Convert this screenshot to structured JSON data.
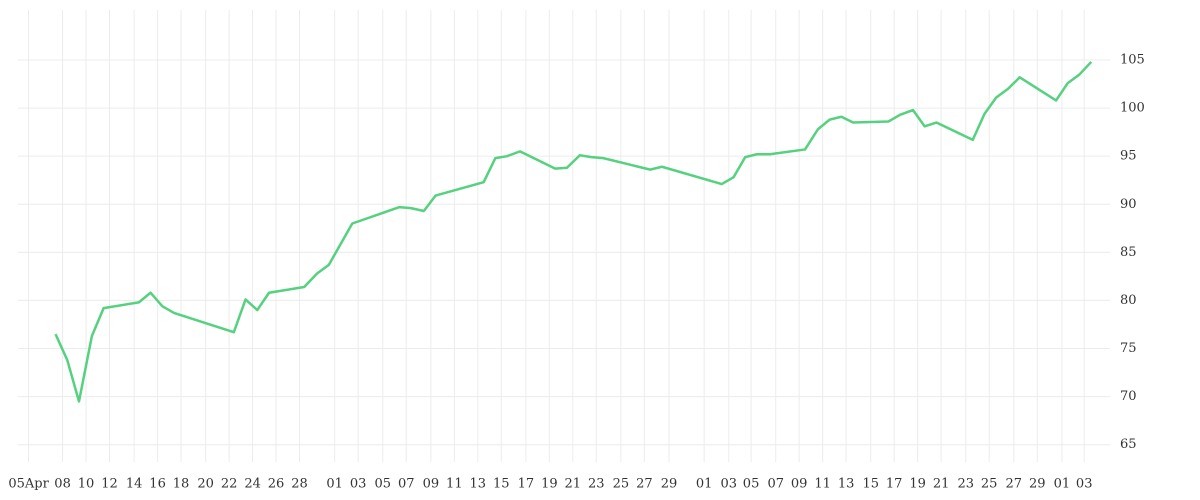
{
  "chart_data": {
    "type": "line",
    "x": [
      2.3,
      3.3,
      4.3,
      5.4,
      6.4,
      9.4,
      10.4,
      11.4,
      12.4,
      17.5,
      18.5,
      19.5,
      20.5,
      23.5,
      24.6,
      25.6,
      27.6,
      31.6,
      32.6,
      33.7,
      34.7,
      38.8,
      39.8,
      40.8,
      41.9,
      44.9,
      45.9,
      47.0,
      48.0,
      49.0,
      53.0,
      54.0,
      59.1,
      60.1,
      61.1,
      62.1,
      63.2,
      66.2,
      67.3,
      68.3,
      69.3,
      70.3,
      73.3,
      74.3,
      75.4,
      76.4,
      77.4,
      80.5,
      81.5,
      82.5,
      83.5,
      84.5,
      87.6,
      88.6,
      89.6,
      90.6
    ],
    "series": [
      {
        "color": "#55d17f",
        "values": [
          76.5,
          73.8,
          69.5,
          76.3,
          79.2,
          79.8,
          80.8,
          79.4,
          78.7,
          76.7,
          80.1,
          79.0,
          80.8,
          81.4,
          82.8,
          83.7,
          88.0,
          89.7,
          89.6,
          89.3,
          90.9,
          92.3,
          94.8,
          95.0,
          95.5,
          93.7,
          93.8,
          95.1,
          94.9,
          94.8,
          93.6,
          93.9,
          92.1,
          92.8,
          94.9,
          95.2,
          95.2,
          95.7,
          97.8,
          98.8,
          99.1,
          98.5,
          98.6,
          99.3,
          99.8,
          98.1,
          98.5,
          96.7,
          99.4,
          101.1,
          102.0,
          103.2,
          100.8,
          102.6,
          103.5,
          104.8
        ]
      }
    ],
    "xlim": [
      -0.9,
      92.2
    ],
    "xticks": [
      {
        "value": 0,
        "label": "05Apr"
      },
      {
        "value": 2.9,
        "label": "08"
      },
      {
        "value": 4.9,
        "label": "10"
      },
      {
        "value": 6.9,
        "label": "12"
      },
      {
        "value": 9.0,
        "label": "14"
      },
      {
        "value": 11.0,
        "label": "16"
      },
      {
        "value": 13.0,
        "label": "18"
      },
      {
        "value": 15.1,
        "label": "20"
      },
      {
        "value": 17.1,
        "label": "22"
      },
      {
        "value": 19.1,
        "label": "24"
      },
      {
        "value": 21.1,
        "label": "26"
      },
      {
        "value": 23.1,
        "label": "28"
      },
      {
        "value": 26.1,
        "label": "01"
      },
      {
        "value": 28.1,
        "label": "03"
      },
      {
        "value": 30.2,
        "label": "05"
      },
      {
        "value": 32.2,
        "label": "07"
      },
      {
        "value": 34.3,
        "label": "09"
      },
      {
        "value": 36.3,
        "label": "11"
      },
      {
        "value": 38.3,
        "label": "13"
      },
      {
        "value": 40.3,
        "label": "15"
      },
      {
        "value": 42.4,
        "label": "17"
      },
      {
        "value": 44.4,
        "label": "19"
      },
      {
        "value": 46.4,
        "label": "21"
      },
      {
        "value": 48.4,
        "label": "23"
      },
      {
        "value": 50.5,
        "label": "25"
      },
      {
        "value": 52.5,
        "label": "27"
      },
      {
        "value": 54.6,
        "label": "29"
      },
      {
        "value": 57.6,
        "label": "01"
      },
      {
        "value": 59.7,
        "label": "03"
      },
      {
        "value": 61.6,
        "label": "05"
      },
      {
        "value": 63.7,
        "label": "07"
      },
      {
        "value": 65.7,
        "label": "09"
      },
      {
        "value": 67.7,
        "label": "11"
      },
      {
        "value": 69.7,
        "label": "13"
      },
      {
        "value": 71.8,
        "label": "15"
      },
      {
        "value": 73.8,
        "label": "17"
      },
      {
        "value": 75.8,
        "label": "19"
      },
      {
        "value": 77.8,
        "label": "21"
      },
      {
        "value": 79.9,
        "label": "23"
      },
      {
        "value": 81.9,
        "label": "25"
      },
      {
        "value": 84.0,
        "label": "27"
      },
      {
        "value": 86.0,
        "label": "29"
      },
      {
        "value": 88.1,
        "label": "01"
      },
      {
        "value": 90.0,
        "label": "03"
      }
    ],
    "ylim": [
      63.2,
      110.2
    ],
    "yticks": [
      65,
      70,
      75,
      80,
      85,
      90,
      95,
      100,
      105
    ],
    "grid": true
  }
}
